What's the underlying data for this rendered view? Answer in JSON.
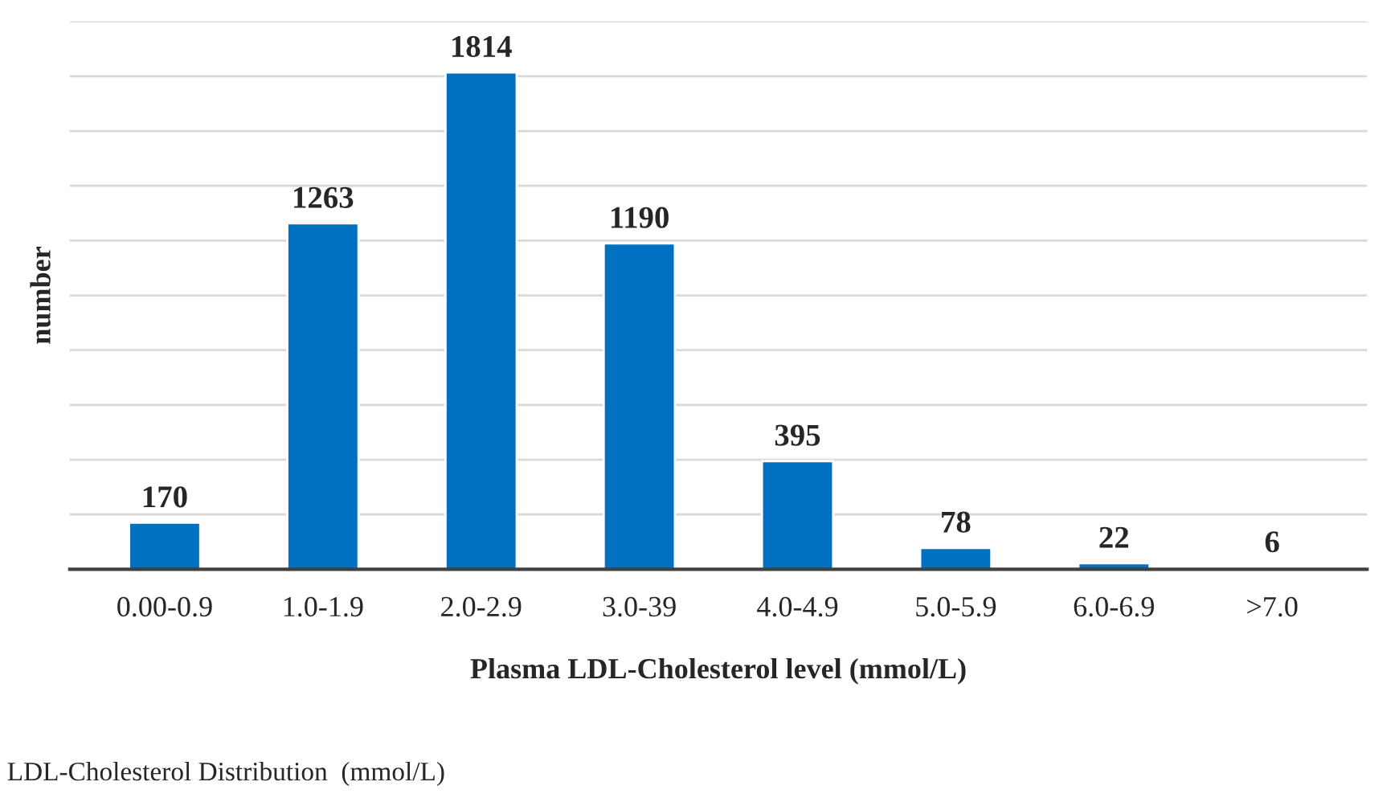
{
  "chart_data": {
    "type": "bar",
    "xlabel": "Plasma LDL-Cholesterol level (mmol/L)",
    "ylabel": "number",
    "categories": [
      "0.00-0.9",
      "1.0-1.9",
      "2.0-2.9",
      "3.0-39",
      "4.0-4.9",
      "5.0-5.9",
      "6.0-6.9",
      ">7.0"
    ],
    "values": [
      170,
      1263,
      1814,
      1190,
      395,
      78,
      22,
      6
    ],
    "color": "#0070c0",
    "data_labels": true,
    "ylim": [
      0,
      2000
    ],
    "yticks": [
      {
        "value": 0,
        "label": null
      },
      {
        "value": 200,
        "label": null
      },
      {
        "value": 400,
        "label": null
      },
      {
        "value": 600,
        "label": null
      },
      {
        "value": 800,
        "label": null
      },
      {
        "value": 1000,
        "label": null
      },
      {
        "value": 1200,
        "label": null
      },
      {
        "value": 1400,
        "label": null
      },
      {
        "value": 1600,
        "label": null
      },
      {
        "value": 1800,
        "label": null
      },
      {
        "value": 2000,
        "label": null
      }
    ],
    "tick_labels": "x",
    "grid": "y",
    "annotations": [
      "LDL-Cholesterol Distribution  (mmol/L)"
    ]
  }
}
